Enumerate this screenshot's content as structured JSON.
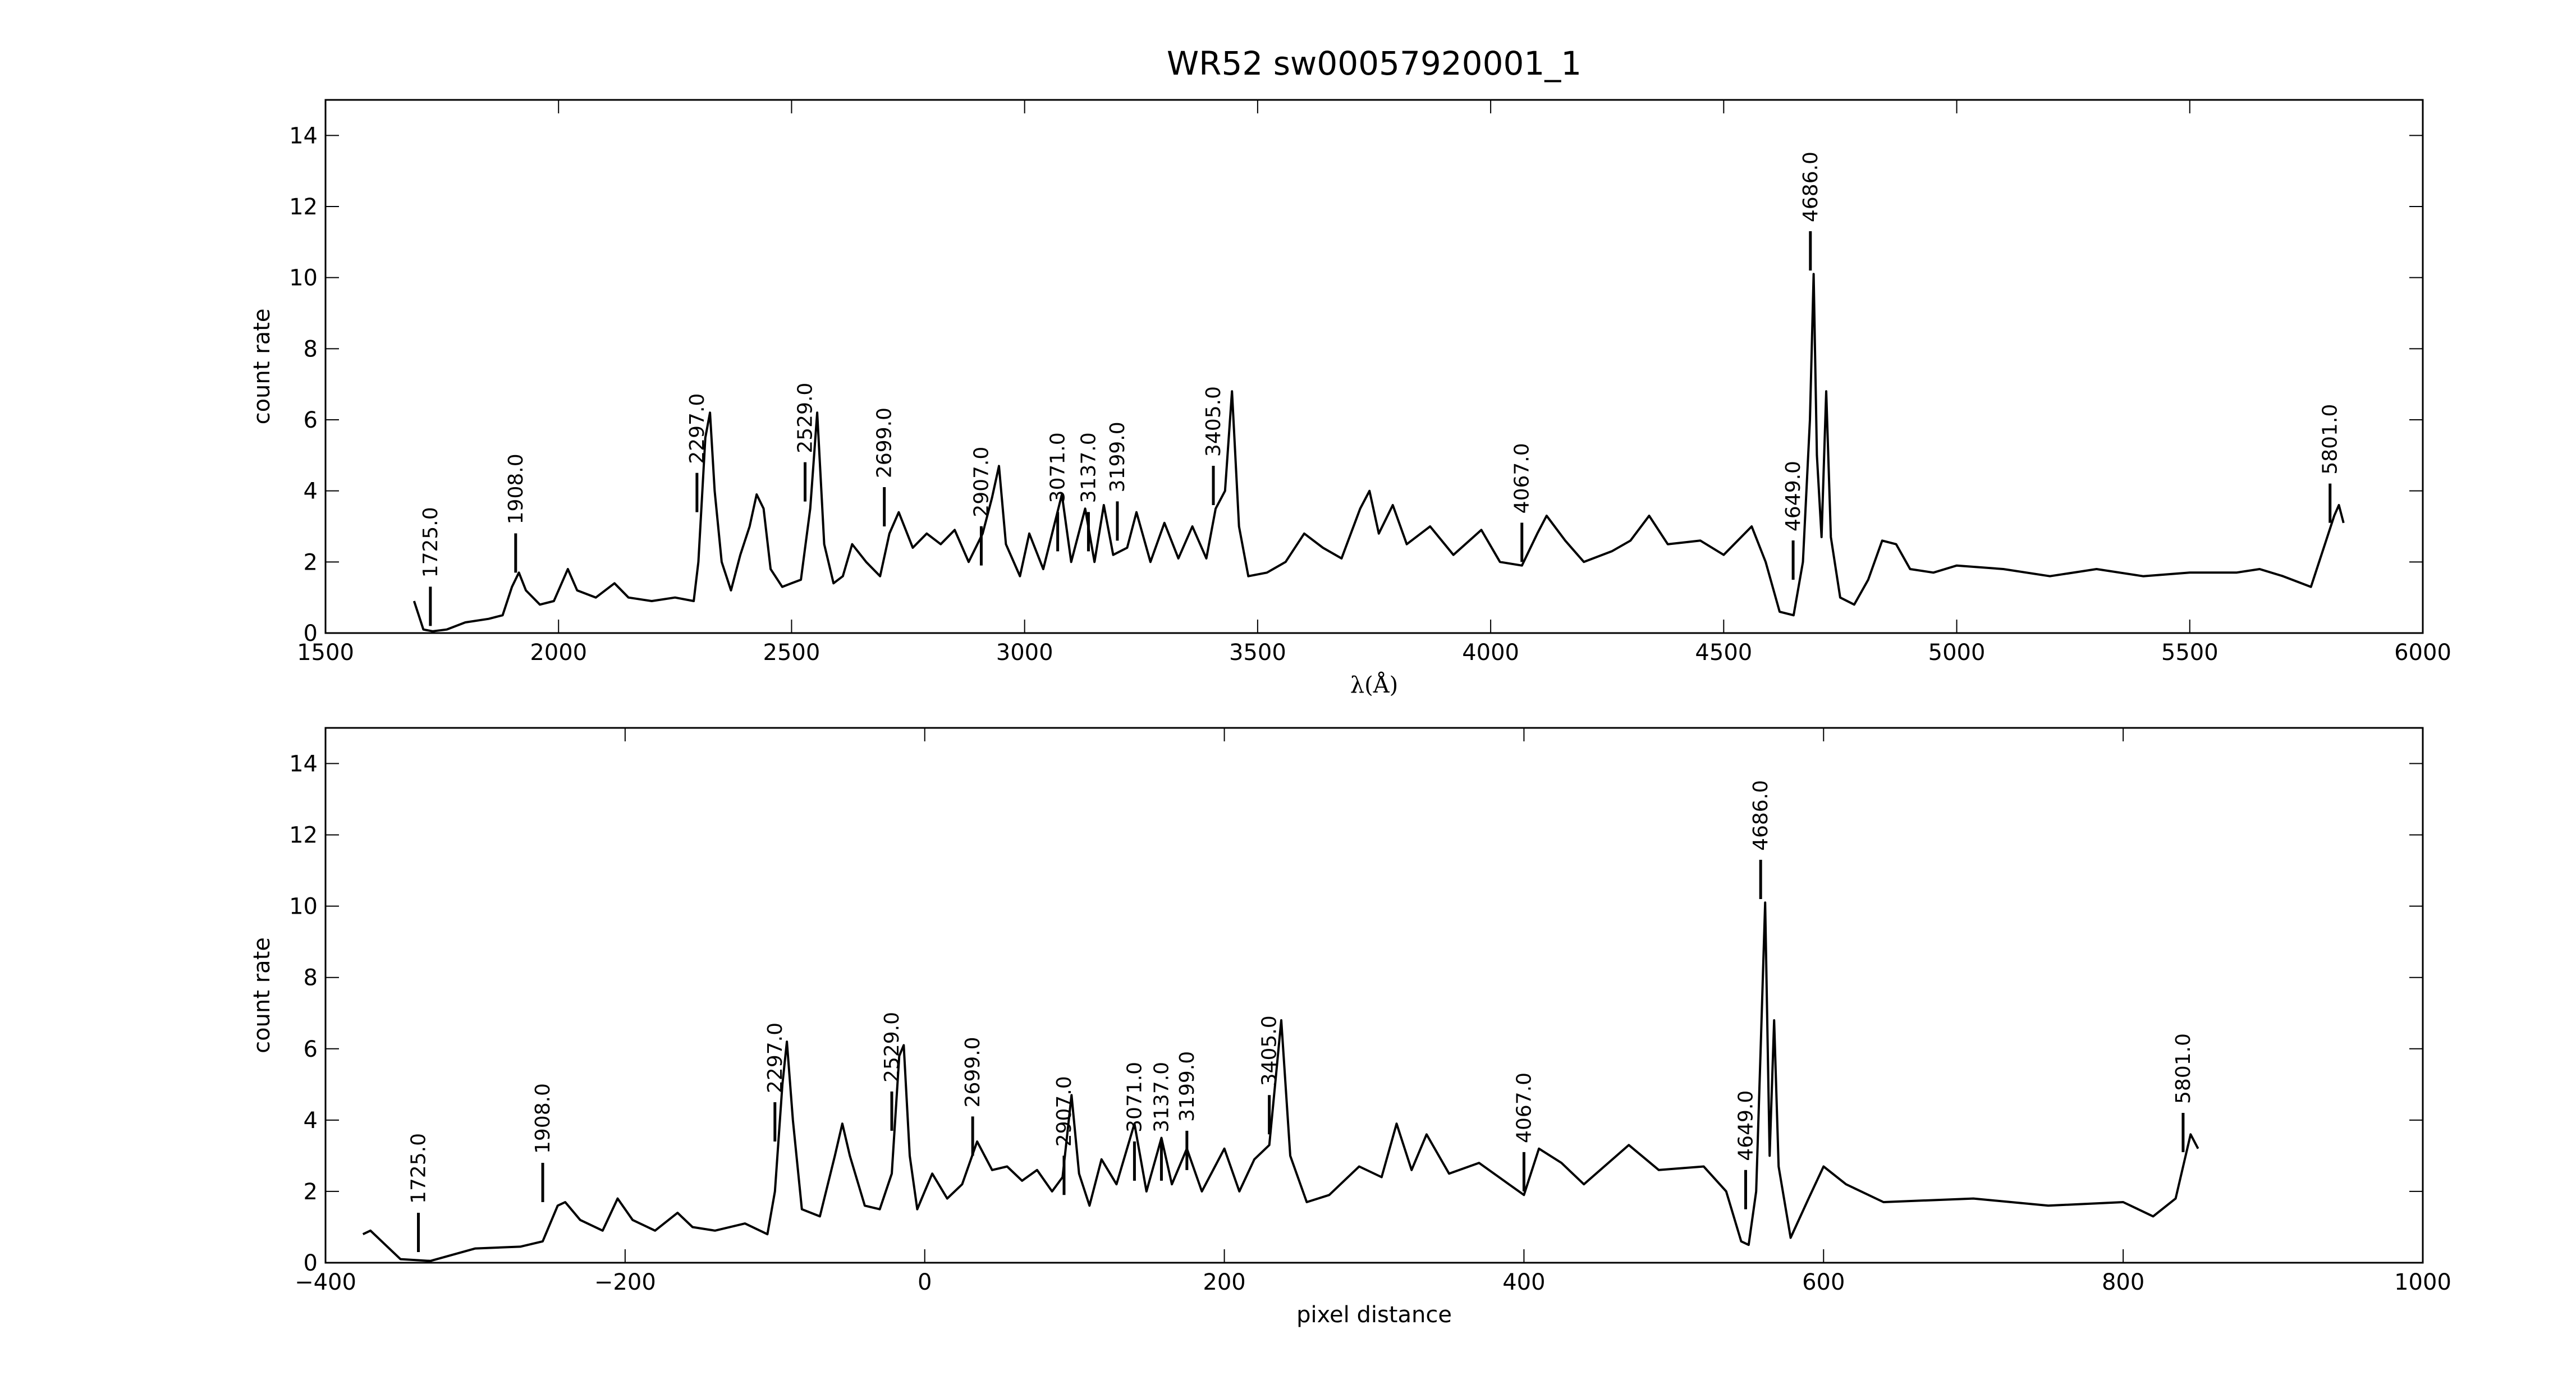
{
  "chart_data": [
    {
      "type": "line",
      "title": "WR52  sw00057920001_1",
      "xlabel": "λ(Å)",
      "ylabel": "count rate",
      "color": "#000000",
      "xlim": [
        1500,
        6000
      ],
      "ylim": [
        0,
        15
      ],
      "xticks": [
        1500,
        2000,
        2500,
        3000,
        3500,
        4000,
        4500,
        5000,
        5500,
        6000
      ],
      "yticks": [
        0,
        2,
        4,
        6,
        8,
        10,
        12,
        14
      ],
      "x": [
        1690,
        1700,
        1710,
        1730,
        1760,
        1800,
        1850,
        1880,
        1900,
        1915,
        1930,
        1960,
        1990,
        2010,
        2020,
        2040,
        2080,
        2120,
        2150,
        2200,
        2250,
        2290,
        2300,
        2315,
        2325,
        2335,
        2350,
        2370,
        2390,
        2410,
        2425,
        2440,
        2455,
        2480,
        2500,
        2520,
        2540,
        2555,
        2570,
        2590,
        2610,
        2630,
        2660,
        2690,
        2710,
        2730,
        2760,
        2790,
        2820,
        2850,
        2880,
        2910,
        2930,
        2945,
        2960,
        2990,
        3010,
        3040,
        3080,
        3100,
        3130,
        3150,
        3170,
        3190,
        3220,
        3240,
        3270,
        3300,
        3330,
        3360,
        3390,
        3410,
        3430,
        3445,
        3460,
        3480,
        3520,
        3560,
        3600,
        3640,
        3680,
        3720,
        3740,
        3760,
        3790,
        3820,
        3870,
        3920,
        3980,
        4020,
        4067,
        4100,
        4120,
        4160,
        4200,
        4260,
        4300,
        4340,
        4380,
        4450,
        4500,
        4560,
        4590,
        4620,
        4650,
        4670,
        4685,
        4693,
        4700,
        4710,
        4720,
        4730,
        4750,
        4780,
        4810,
        4840,
        4870,
        4900,
        4950,
        5000,
        5100,
        5200,
        5300,
        5400,
        5500,
        5600,
        5650,
        5700,
        5760,
        5790,
        5810,
        5820,
        5830
      ],
      "values": [
        0.9,
        0.5,
        0.1,
        0.05,
        0.1,
        0.3,
        0.4,
        0.5,
        1.3,
        1.7,
        1.2,
        0.8,
        0.9,
        1.5,
        1.8,
        1.2,
        1.0,
        1.4,
        1.0,
        0.9,
        1.0,
        0.9,
        2.0,
        5.5,
        6.2,
        4.0,
        2.0,
        1.2,
        2.2,
        3.0,
        3.9,
        3.5,
        1.8,
        1.3,
        1.4,
        1.5,
        3.5,
        6.2,
        2.5,
        1.4,
        1.6,
        2.5,
        2.0,
        1.6,
        2.8,
        3.4,
        2.4,
        2.8,
        2.5,
        2.9,
        2.0,
        2.8,
        3.8,
        4.7,
        2.5,
        1.6,
        2.8,
        1.8,
        3.9,
        2.0,
        3.5,
        2.0,
        3.6,
        2.2,
        2.4,
        3.4,
        2.0,
        3.1,
        2.1,
        3.0,
        2.1,
        3.5,
        4.0,
        6.8,
        3.0,
        1.6,
        1.7,
        2.0,
        2.8,
        2.4,
        2.1,
        3.5,
        4.0,
        2.8,
        3.6,
        2.5,
        3.0,
        2.2,
        2.9,
        2.0,
        1.9,
        2.8,
        3.3,
        2.6,
        2.0,
        2.3,
        2.6,
        3.3,
        2.5,
        2.6,
        2.2,
        3.0,
        2.0,
        0.6,
        0.5,
        2.0,
        6.0,
        10.1,
        5.0,
        2.7,
        6.8,
        2.7,
        1.0,
        0.8,
        1.5,
        2.6,
        2.5,
        1.8,
        1.7,
        1.9,
        1.8,
        1.6,
        1.8,
        1.6,
        1.7,
        1.7,
        1.8,
        1.6,
        1.3,
        2.5,
        3.3,
        3.6,
        3.1
      ],
      "annotations": [
        {
          "x": 1725,
          "y": 0.2,
          "label": "1725.0"
        },
        {
          "x": 1908,
          "y": 1.7,
          "label": "1908.0"
        },
        {
          "x": 2297,
          "y": 3.4,
          "label": "2297.0"
        },
        {
          "x": 2529,
          "y": 3.7,
          "label": "2529.0"
        },
        {
          "x": 2699,
          "y": 3.0,
          "label": "2699.0"
        },
        {
          "x": 2907,
          "y": 1.9,
          "label": "2907.0"
        },
        {
          "x": 3071,
          "y": 2.3,
          "label": "3071.0"
        },
        {
          "x": 3137,
          "y": 2.3,
          "label": "3137.0"
        },
        {
          "x": 3199,
          "y": 2.6,
          "label": "3199.0"
        },
        {
          "x": 3405,
          "y": 3.6,
          "label": "3405.0"
        },
        {
          "x": 4067,
          "y": 2.0,
          "label": "4067.0"
        },
        {
          "x": 4649,
          "y": 1.5,
          "label": "4649.0"
        },
        {
          "x": 4686,
          "y": 10.2,
          "label": "4686.0"
        },
        {
          "x": 5801,
          "y": 3.1,
          "label": "5801.0"
        }
      ]
    },
    {
      "type": "line",
      "xlabel": "pixel distance",
      "ylabel": "count rate",
      "color": "#000000",
      "xlim": [
        -400,
        1000
      ],
      "ylim": [
        0,
        15
      ],
      "xticks": [
        {
          "value": -400,
          "label": "−400"
        },
        {
          "value": -200,
          "label": "−200"
        },
        0,
        200,
        400,
        600,
        800,
        1000
      ],
      "yticks": [
        0,
        2,
        4,
        6,
        8,
        10,
        12,
        14
      ],
      "x": [
        -375,
        -370,
        -360,
        -350,
        -330,
        -300,
        -270,
        -255,
        -245,
        -240,
        -230,
        -215,
        -205,
        -195,
        -180,
        -165,
        -155,
        -140,
        -120,
        -105,
        -100,
        -95,
        -92,
        -88,
        -82,
        -70,
        -60,
        -55,
        -50,
        -40,
        -30,
        -22,
        -17,
        -14,
        -10,
        -5,
        0,
        5,
        15,
        25,
        35,
        45,
        55,
        65,
        75,
        85,
        92,
        98,
        103,
        110,
        118,
        128,
        140,
        148,
        158,
        165,
        175,
        185,
        200,
        210,
        220,
        230,
        238,
        244,
        255,
        270,
        290,
        305,
        315,
        325,
        335,
        350,
        370,
        390,
        400,
        410,
        425,
        440,
        470,
        490,
        520,
        535,
        545,
        550,
        555,
        558,
        561,
        564,
        567,
        570,
        578,
        590,
        600,
        615,
        640,
        700,
        750,
        800,
        820,
        835,
        845,
        850
      ],
      "values": [
        0.8,
        0.9,
        0.5,
        0.1,
        0.05,
        0.4,
        0.45,
        0.6,
        1.6,
        1.7,
        1.2,
        0.9,
        1.8,
        1.2,
        0.9,
        1.4,
        1.0,
        0.9,
        1.1,
        0.8,
        2.0,
        5.0,
        6.2,
        4.0,
        1.5,
        1.3,
        3.0,
        3.9,
        3.0,
        1.6,
        1.5,
        2.5,
        5.8,
        6.1,
        3.0,
        1.5,
        2.0,
        2.5,
        1.8,
        2.2,
        3.4,
        2.6,
        2.7,
        2.3,
        2.6,
        2.0,
        2.4,
        4.7,
        2.5,
        1.6,
        2.9,
        2.2,
        3.9,
        2.0,
        3.5,
        2.2,
        3.2,
        2.0,
        3.2,
        2.0,
        2.9,
        3.3,
        6.8,
        3.0,
        1.7,
        1.9,
        2.7,
        2.4,
        3.9,
        2.6,
        3.6,
        2.5,
        2.8,
        2.2,
        1.9,
        3.2,
        2.8,
        2.2,
        3.3,
        2.6,
        2.7,
        2.0,
        0.6,
        0.5,
        2.0,
        6.0,
        10.1,
        3.0,
        6.8,
        2.7,
        0.7,
        1.8,
        2.7,
        2.2,
        1.7,
        1.8,
        1.6,
        1.7,
        1.3,
        1.8,
        3.6,
        3.2
      ],
      "annotations": [
        {
          "x": -338,
          "y": 0.3,
          "label": "1725.0"
        },
        {
          "x": -255,
          "y": 1.7,
          "label": "1908.0"
        },
        {
          "x": -100,
          "y": 3.4,
          "label": "2297.0"
        },
        {
          "x": -22,
          "y": 3.7,
          "label": "2529.0"
        },
        {
          "x": 32,
          "y": 3.0,
          "label": "2699.0"
        },
        {
          "x": 93,
          "y": 1.9,
          "label": "2907.0"
        },
        {
          "x": 140,
          "y": 2.3,
          "label": "3071.0"
        },
        {
          "x": 158,
          "y": 2.3,
          "label": "3137.0"
        },
        {
          "x": 175,
          "y": 2.6,
          "label": "3199.0"
        },
        {
          "x": 230,
          "y": 3.6,
          "label": "3405.0"
        },
        {
          "x": 400,
          "y": 2.0,
          "label": "4067.0"
        },
        {
          "x": 548,
          "y": 1.5,
          "label": "4649.0"
        },
        {
          "x": 558,
          "y": 10.2,
          "label": "4686.0"
        },
        {
          "x": 840,
          "y": 3.1,
          "label": "5801.0"
        }
      ]
    }
  ]
}
